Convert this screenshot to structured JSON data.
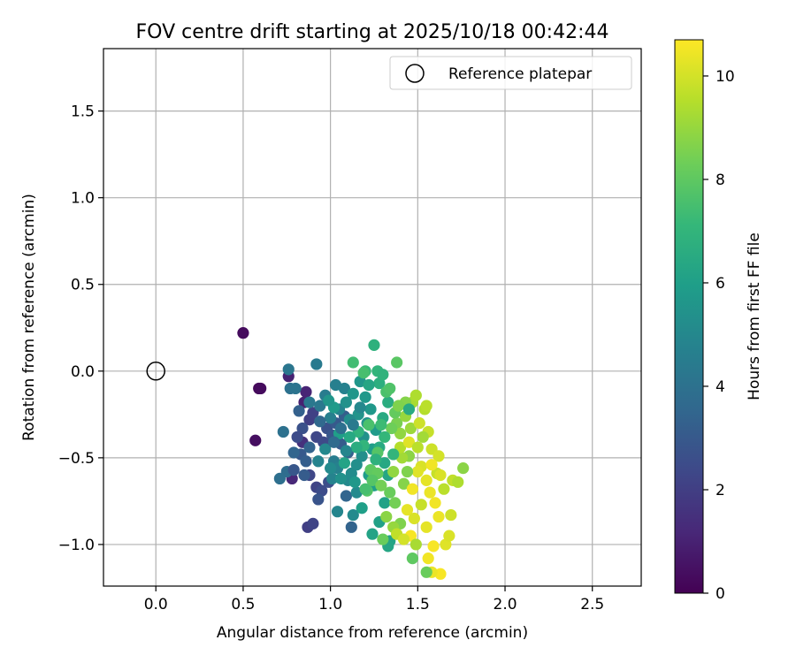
{
  "chart_data": {
    "type": "scatter",
    "title": "FOV centre drift starting at 2025/10/18 00:42:44",
    "xlabel": "Angular distance from reference (arcmin)",
    "ylabel": "Rotation from reference (arcmin)",
    "xlim": [
      -0.3,
      2.78
    ],
    "ylim": [
      -1.24,
      1.86
    ],
    "xticks": [
      0.0,
      0.5,
      1.0,
      1.5,
      2.0,
      2.5
    ],
    "xtick_labels": [
      "0.0",
      "0.5",
      "1.0",
      "1.5",
      "2.0",
      "2.5"
    ],
    "yticks": [
      -1.0,
      -0.5,
      0.0,
      0.5,
      1.0,
      1.5
    ],
    "ytick_labels": [
      "−1.0",
      "−0.5",
      "0.0",
      "0.5",
      "1.0",
      "1.5"
    ],
    "grid": true,
    "legend": {
      "label": "Reference platepar",
      "position": "top-right"
    },
    "reference_point": {
      "x": 0.0,
      "y": 0.0
    },
    "colorbar": {
      "label": "Hours from first FF file",
      "range": [
        0,
        10.7
      ],
      "ticks": [
        0,
        2,
        4,
        6,
        8,
        10
      ],
      "tick_labels": [
        "0",
        "2",
        "4",
        "6",
        "8",
        "10"
      ],
      "colormap": "viridis",
      "colors": [
        "#440154",
        "#482878",
        "#3e4989",
        "#31688e",
        "#26828e",
        "#1f9e89",
        "#35b779",
        "#6ece58",
        "#b5de2b",
        "#fde725"
      ]
    },
    "points": [
      {
        "x": 0.5,
        "y": 0.22,
        "h": 0.3
      },
      {
        "x": 0.59,
        "y": -0.1,
        "h": 0.2
      },
      {
        "x": 0.6,
        "y": -0.1,
        "h": 0.3
      },
      {
        "x": 0.57,
        "y": -0.4,
        "h": 0.4
      },
      {
        "x": 0.76,
        "y": -0.03,
        "h": 1.0
      },
      {
        "x": 0.85,
        "y": -0.18,
        "h": 1.0
      },
      {
        "x": 0.86,
        "y": -0.12,
        "h": 1.1
      },
      {
        "x": 0.78,
        "y": -0.62,
        "h": 1.2
      },
      {
        "x": 0.84,
        "y": -0.41,
        "h": 1.5
      },
      {
        "x": 0.87,
        "y": -0.9,
        "h": 2.0
      },
      {
        "x": 0.9,
        "y": -0.88,
        "h": 2.2
      },
      {
        "x": 0.88,
        "y": -0.6,
        "h": 2.3
      },
      {
        "x": 0.92,
        "y": -0.67,
        "h": 2.2
      },
      {
        "x": 0.95,
        "y": -0.69,
        "h": 2.5
      },
      {
        "x": 0.99,
        "y": -0.64,
        "h": 2.6
      },
      {
        "x": 0.93,
        "y": -0.74,
        "h": 2.8
      },
      {
        "x": 0.88,
        "y": -0.28,
        "h": 2.0
      },
      {
        "x": 0.9,
        "y": -0.24,
        "h": 2.1
      },
      {
        "x": 0.92,
        "y": -0.38,
        "h": 2.3
      },
      {
        "x": 0.96,
        "y": -0.41,
        "h": 2.4
      },
      {
        "x": 0.98,
        "y": -0.33,
        "h": 2.7
      },
      {
        "x": 1.01,
        "y": -0.37,
        "h": 2.9
      },
      {
        "x": 1.03,
        "y": -0.3,
        "h": 3.0
      },
      {
        "x": 1.06,
        "y": -0.42,
        "h": 3.1
      },
      {
        "x": 1.08,
        "y": -0.26,
        "h": 3.2
      },
      {
        "x": 1.1,
        "y": -0.47,
        "h": 3.3
      },
      {
        "x": 1.12,
        "y": -0.9,
        "h": 3.4
      },
      {
        "x": 1.09,
        "y": -0.72,
        "h": 3.5
      },
      {
        "x": 0.83,
        "y": -0.48,
        "h": 3.0
      },
      {
        "x": 0.86,
        "y": -0.52,
        "h": 3.2
      },
      {
        "x": 0.82,
        "y": -0.23,
        "h": 3.3
      },
      {
        "x": 0.79,
        "y": -0.47,
        "h": 3.5
      },
      {
        "x": 0.75,
        "y": -0.58,
        "h": 3.8
      },
      {
        "x": 0.71,
        "y": -0.62,
        "h": 3.9
      },
      {
        "x": 0.73,
        "y": -0.35,
        "h": 4.0
      },
      {
        "x": 0.77,
        "y": -0.1,
        "h": 4.0
      },
      {
        "x": 0.76,
        "y": 0.01,
        "h": 4.2
      },
      {
        "x": 0.8,
        "y": -0.1,
        "h": 4.1
      },
      {
        "x": 0.88,
        "y": -0.18,
        "h": 4.3
      },
      {
        "x": 0.92,
        "y": 0.04,
        "h": 4.4
      },
      {
        "x": 0.94,
        "y": -0.2,
        "h": 4.3
      },
      {
        "x": 0.97,
        "y": -0.14,
        "h": 4.5
      },
      {
        "x": 1.03,
        "y": -0.08,
        "h": 4.6
      },
      {
        "x": 1.08,
        "y": -0.1,
        "h": 4.7
      },
      {
        "x": 1.05,
        "y": -0.22,
        "h": 4.8
      },
      {
        "x": 1.0,
        "y": -0.27,
        "h": 4.6
      },
      {
        "x": 1.02,
        "y": -0.52,
        "h": 4.5
      },
      {
        "x": 1.04,
        "y": -0.56,
        "h": 4.7
      },
      {
        "x": 1.01,
        "y": -0.62,
        "h": 4.8
      },
      {
        "x": 1.04,
        "y": -0.81,
        "h": 4.9
      },
      {
        "x": 1.1,
        "y": -0.63,
        "h": 5.0
      },
      {
        "x": 1.13,
        "y": -0.83,
        "h": 5.1
      },
      {
        "x": 1.15,
        "y": -0.7,
        "h": 5.1
      },
      {
        "x": 1.12,
        "y": -0.59,
        "h": 5.2
      },
      {
        "x": 1.15,
        "y": -0.54,
        "h": 5.3
      },
      {
        "x": 1.18,
        "y": -0.49,
        "h": 5.3
      },
      {
        "x": 1.19,
        "y": -0.38,
        "h": 5.4
      },
      {
        "x": 1.21,
        "y": -0.3,
        "h": 5.5
      },
      {
        "x": 1.16,
        "y": -0.25,
        "h": 5.5
      },
      {
        "x": 1.13,
        "y": -0.13,
        "h": 5.6
      },
      {
        "x": 1.17,
        "y": -0.06,
        "h": 5.6
      },
      {
        "x": 1.2,
        "y": -0.15,
        "h": 5.7
      },
      {
        "x": 1.23,
        "y": -0.22,
        "h": 5.7
      },
      {
        "x": 1.26,
        "y": -0.34,
        "h": 5.8
      },
      {
        "x": 1.24,
        "y": -0.45,
        "h": 5.9
      },
      {
        "x": 1.22,
        "y": -0.6,
        "h": 5.9
      },
      {
        "x": 1.25,
        "y": -0.66,
        "h": 6.0
      },
      {
        "x": 1.28,
        "y": -0.87,
        "h": 6.1
      },
      {
        "x": 1.31,
        "y": -0.76,
        "h": 6.1
      },
      {
        "x": 1.34,
        "y": -0.98,
        "h": 6.2
      },
      {
        "x": 1.33,
        "y": -1.01,
        "h": 6.3
      },
      {
        "x": 1.24,
        "y": -0.94,
        "h": 6.2
      },
      {
        "x": 1.33,
        "y": -0.6,
        "h": 6.3
      },
      {
        "x": 1.31,
        "y": -0.53,
        "h": 6.4
      },
      {
        "x": 1.28,
        "y": -0.44,
        "h": 6.5
      },
      {
        "x": 1.3,
        "y": -0.27,
        "h": 6.5
      },
      {
        "x": 1.33,
        "y": -0.18,
        "h": 6.6
      },
      {
        "x": 1.28,
        "y": -0.07,
        "h": 6.7
      },
      {
        "x": 1.25,
        "y": 0.15,
        "h": 6.8
      },
      {
        "x": 1.27,
        "y": 0.0,
        "h": 7.0
      },
      {
        "x": 1.2,
        "y": 0.0,
        "h": 7.2
      },
      {
        "x": 1.13,
        "y": 0.05,
        "h": 7.4
      },
      {
        "x": 1.19,
        "y": -0.01,
        "h": 7.5
      },
      {
        "x": 1.32,
        "y": -0.12,
        "h": 7.6
      },
      {
        "x": 1.34,
        "y": -0.1,
        "h": 7.7
      },
      {
        "x": 1.38,
        "y": 0.05,
        "h": 7.9
      },
      {
        "x": 1.22,
        "y": -0.31,
        "h": 7.6
      },
      {
        "x": 1.27,
        "y": -0.47,
        "h": 7.8
      },
      {
        "x": 1.23,
        "y": -0.57,
        "h": 8.0
      },
      {
        "x": 1.21,
        "y": -0.69,
        "h": 7.8
      },
      {
        "x": 1.27,
        "y": -0.59,
        "h": 8.1
      },
      {
        "x": 1.34,
        "y": -0.7,
        "h": 8.2
      },
      {
        "x": 1.37,
        "y": -0.76,
        "h": 8.4
      },
      {
        "x": 1.4,
        "y": -0.88,
        "h": 8.6
      },
      {
        "x": 1.42,
        "y": -0.65,
        "h": 8.7
      },
      {
        "x": 1.45,
        "y": -0.49,
        "h": 8.8
      },
      {
        "x": 1.38,
        "y": -0.3,
        "h": 8.5
      },
      {
        "x": 1.4,
        "y": -0.36,
        "h": 8.9
      },
      {
        "x": 1.43,
        "y": -0.26,
        "h": 9.0
      },
      {
        "x": 1.46,
        "y": -0.33,
        "h": 9.1
      },
      {
        "x": 1.47,
        "y": -0.18,
        "h": 9.3
      },
      {
        "x": 1.49,
        "y": -0.14,
        "h": 9.4
      },
      {
        "x": 1.54,
        "y": -0.22,
        "h": 9.5
      },
      {
        "x": 1.55,
        "y": -0.2,
        "h": 9.6
      },
      {
        "x": 1.56,
        "y": -0.35,
        "h": 9.8
      },
      {
        "x": 1.58,
        "y": -0.45,
        "h": 9.9
      },
      {
        "x": 1.62,
        "y": -0.49,
        "h": 10.0
      },
      {
        "x": 1.52,
        "y": -0.55,
        "h": 10.1
      },
      {
        "x": 1.5,
        "y": -0.58,
        "h": 10.2
      },
      {
        "x": 1.55,
        "y": -0.63,
        "h": 10.3
      },
      {
        "x": 1.57,
        "y": -0.7,
        "h": 10.4
      },
      {
        "x": 1.6,
        "y": -0.76,
        "h": 10.5
      },
      {
        "x": 1.62,
        "y": -0.84,
        "h": 10.4
      },
      {
        "x": 1.55,
        "y": -0.9,
        "h": 10.3
      },
      {
        "x": 1.59,
        "y": -1.01,
        "h": 10.6
      },
      {
        "x": 1.56,
        "y": -1.08,
        "h": 10.5
      },
      {
        "x": 1.63,
        "y": -1.17,
        "h": 10.6
      },
      {
        "x": 1.58,
        "y": -1.16,
        "h": 10.4
      },
      {
        "x": 1.66,
        "y": -1.0,
        "h": 10.2
      },
      {
        "x": 1.68,
        "y": -0.95,
        "h": 10.1
      },
      {
        "x": 1.69,
        "y": -0.83,
        "h": 9.9
      },
      {
        "x": 1.7,
        "y": -0.63,
        "h": 9.7
      },
      {
        "x": 1.73,
        "y": -0.64,
        "h": 9.4
      },
      {
        "x": 1.76,
        "y": -0.56,
        "h": 8.8
      },
      {
        "x": 1.65,
        "y": -0.68,
        "h": 9.6
      },
      {
        "x": 1.61,
        "y": -0.59,
        "h": 9.8
      },
      {
        "x": 1.47,
        "y": -0.68,
        "h": 10.5
      },
      {
        "x": 1.46,
        "y": -0.95,
        "h": 10.6
      },
      {
        "x": 1.44,
        "y": -0.8,
        "h": 10.3
      },
      {
        "x": 1.48,
        "y": -0.85,
        "h": 10.1
      },
      {
        "x": 1.52,
        "y": -0.77,
        "h": 9.8
      },
      {
        "x": 1.49,
        "y": -1.0,
        "h": 9.3
      },
      {
        "x": 1.47,
        "y": -1.08,
        "h": 8.0
      },
      {
        "x": 1.55,
        "y": -1.16,
        "h": 8.2
      },
      {
        "x": 1.41,
        "y": -0.5,
        "h": 9.2
      },
      {
        "x": 1.44,
        "y": -0.58,
        "h": 8.6
      },
      {
        "x": 1.36,
        "y": -0.58,
        "h": 8.9
      },
      {
        "x": 1.4,
        "y": -0.44,
        "h": 9.5
      },
      {
        "x": 1.35,
        "y": -0.33,
        "h": 8.3
      },
      {
        "x": 1.37,
        "y": -0.24,
        "h": 8.1
      },
      {
        "x": 1.29,
        "y": -0.31,
        "h": 7.3
      },
      {
        "x": 1.31,
        "y": -0.38,
        "h": 7.1
      },
      {
        "x": 1.36,
        "y": -0.48,
        "h": 7.0
      },
      {
        "x": 1.19,
        "y": -0.43,
        "h": 7.0
      },
      {
        "x": 1.16,
        "y": -0.35,
        "h": 6.9
      },
      {
        "x": 1.15,
        "y": -0.44,
        "h": 6.6
      },
      {
        "x": 1.11,
        "y": -0.38,
        "h": 6.4
      },
      {
        "x": 1.08,
        "y": -0.53,
        "h": 6.2
      },
      {
        "x": 1.05,
        "y": -0.36,
        "h": 6.0
      },
      {
        "x": 1.02,
        "y": -0.21,
        "h": 5.8
      },
      {
        "x": 0.99,
        "y": -0.17,
        "h": 5.6
      },
      {
        "x": 1.09,
        "y": -0.18,
        "h": 5.4
      },
      {
        "x": 1.11,
        "y": -0.28,
        "h": 5.2
      },
      {
        "x": 0.97,
        "y": -0.45,
        "h": 5.0
      },
      {
        "x": 0.93,
        "y": -0.52,
        "h": 4.8
      },
      {
        "x": 1.0,
        "y": -0.56,
        "h": 5.1
      },
      {
        "x": 1.06,
        "y": -0.62,
        "h": 5.4
      },
      {
        "x": 1.14,
        "y": -0.64,
        "h": 5.7
      },
      {
        "x": 1.18,
        "y": -0.79,
        "h": 6.0
      },
      {
        "x": 1.2,
        "y": -0.68,
        "h": 7.5
      },
      {
        "x": 1.24,
        "y": -0.63,
        "h": 7.8
      },
      {
        "x": 1.29,
        "y": -0.66,
        "h": 8.4
      },
      {
        "x": 1.32,
        "y": -0.84,
        "h": 8.8
      },
      {
        "x": 1.36,
        "y": -0.9,
        "h": 9.0
      },
      {
        "x": 1.38,
        "y": -0.94,
        "h": 9.7
      },
      {
        "x": 1.42,
        "y": -0.97,
        "h": 10.0
      },
      {
        "x": 1.45,
        "y": -0.41,
        "h": 10.2
      },
      {
        "x": 1.5,
        "y": -0.44,
        "h": 9.6
      },
      {
        "x": 1.53,
        "y": -0.38,
        "h": 9.2
      },
      {
        "x": 1.58,
        "y": -0.54,
        "h": 10.5
      },
      {
        "x": 1.63,
        "y": -0.6,
        "h": 10.1
      },
      {
        "x": 1.51,
        "y": -0.3,
        "h": 9.9
      },
      {
        "x": 1.43,
        "y": -0.18,
        "h": 8.7
      },
      {
        "x": 1.39,
        "y": -0.2,
        "h": 8.6
      },
      {
        "x": 1.45,
        "y": -0.22,
        "h": 6.5
      },
      {
        "x": 1.3,
        "y": -0.97,
        "h": 8.2
      },
      {
        "x": 1.26,
        "y": -0.51,
        "h": 6.8
      },
      {
        "x": 1.09,
        "y": -0.46,
        "h": 4.9
      },
      {
        "x": 0.94,
        "y": -0.29,
        "h": 3.6
      },
      {
        "x": 0.88,
        "y": -0.44,
        "h": 3.4
      },
      {
        "x": 0.84,
        "y": -0.33,
        "h": 2.7
      },
      {
        "x": 0.81,
        "y": -0.38,
        "h": 2.5
      },
      {
        "x": 0.79,
        "y": -0.57,
        "h": 2.9
      },
      {
        "x": 0.85,
        "y": -0.6,
        "h": 3.1
      },
      {
        "x": 1.02,
        "y": -0.41,
        "h": 3.7
      },
      {
        "x": 1.06,
        "y": -0.33,
        "h": 3.9
      },
      {
        "x": 1.13,
        "y": -0.31,
        "h": 4.4
      },
      {
        "x": 1.17,
        "y": -0.21,
        "h": 5.0
      },
      {
        "x": 1.22,
        "y": -0.08,
        "h": 6.3
      },
      {
        "x": 1.3,
        "y": -0.02,
        "h": 6.9
      }
    ]
  }
}
